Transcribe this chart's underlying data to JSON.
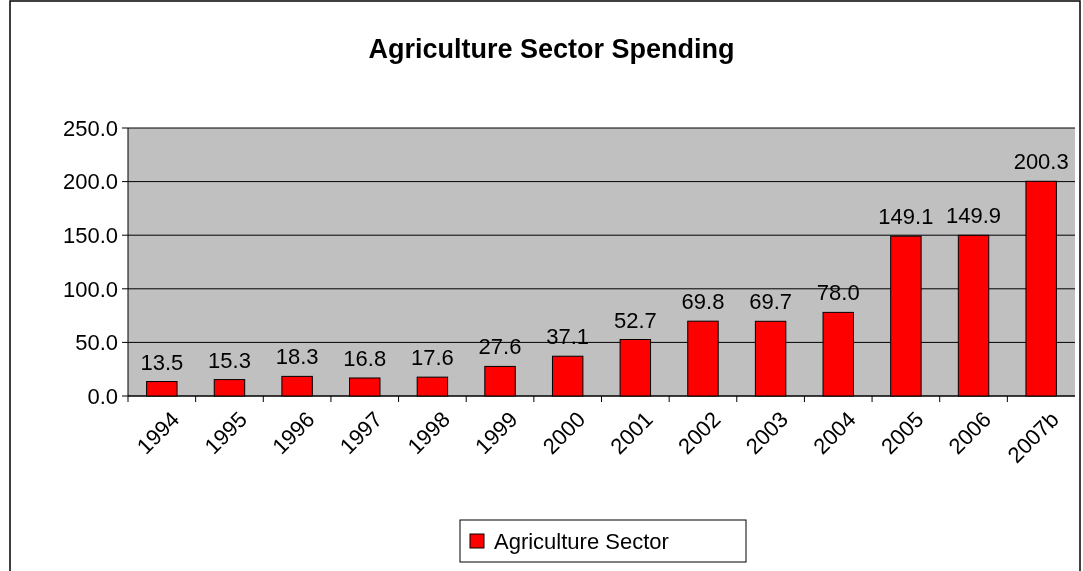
{
  "chart_data": {
    "type": "bar",
    "title": "Agriculture Sector Spending",
    "categories": [
      "1994",
      "1995",
      "1996",
      "1997",
      "1998",
      "1999",
      "2000",
      "2001",
      "2002",
      "2003",
      "2004",
      "2005",
      "2006",
      "2007b"
    ],
    "series": [
      {
        "name": "Agriculture Sector",
        "color": "#ff0000",
        "values": [
          13.5,
          15.3,
          18.3,
          16.8,
          17.6,
          27.6,
          37.1,
          52.7,
          69.8,
          69.7,
          78.0,
          149.1,
          149.9,
          200.3
        ]
      }
    ],
    "ylim": [
      0,
      250
    ],
    "yticks": [
      {
        "value": 0,
        "label": "0.0"
      },
      {
        "value": 50,
        "label": "50.0"
      },
      {
        "value": 100,
        "label": "100.0"
      },
      {
        "value": 150,
        "label": "150.0"
      },
      {
        "value": 200,
        "label": "200.0"
      },
      {
        "value": 250,
        "label": "250.0"
      }
    ],
    "value_labels": [
      "13.5",
      "15.3",
      "18.3",
      "16.8",
      "17.6",
      "27.6",
      "37.1",
      "52.7",
      "69.8",
      "69.7",
      "78.0",
      "149.1",
      "149.9",
      "200.3"
    ],
    "grid": "y",
    "legend": "bottom"
  }
}
